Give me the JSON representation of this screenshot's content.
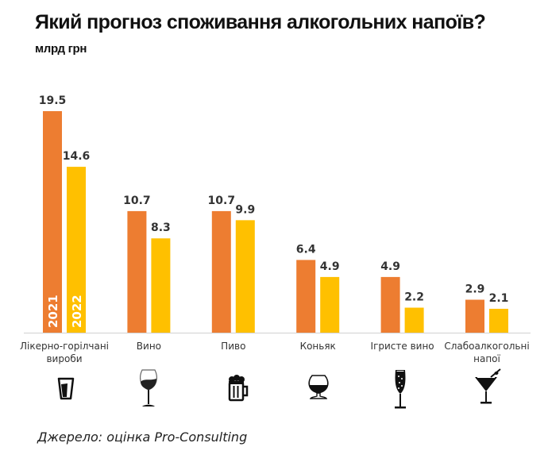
{
  "header": {
    "title": "Який прогноз споживання алкогольних напоїв?",
    "subtitle": "млрд грн"
  },
  "source": "Джерело: оцінка Pro-Consulting",
  "colors": {
    "series_2021": "#ED7D31",
    "series_2022": "#FFC000",
    "axis": "#d0d0d0"
  },
  "chart_data": {
    "type": "bar",
    "title": "Який прогноз споживання алкогольних напоїв?",
    "subtitle": "млрд грн",
    "xlabel": "",
    "ylabel": "млрд грн",
    "ylim": [
      0,
      19.5
    ],
    "grid": false,
    "legend": "inside-first-bars",
    "categories": [
      [
        "Лікерно-горілчані",
        "вироби"
      ],
      [
        "Вино"
      ],
      [
        "Пиво"
      ],
      [
        "Коньяк"
      ],
      [
        "Ігристе вино"
      ],
      [
        "Слабоалкогольні",
        "напої"
      ]
    ],
    "category_icons": [
      "shot-glass-icon",
      "wine-glass-icon",
      "beer-mug-icon",
      "brandy-snifter-icon",
      "champagne-flute-icon",
      "cocktail-glass-icon"
    ],
    "series": [
      {
        "name": "2021",
        "color": "#ED7D31",
        "values": [
          19.5,
          10.7,
          10.7,
          6.4,
          4.9,
          2.9
        ],
        "labels": [
          "19.5",
          "10.7",
          "10.7",
          "6.4",
          "4.9",
          "2.9"
        ]
      },
      {
        "name": "2022",
        "color": "#FFC000",
        "values": [
          14.6,
          8.3,
          9.9,
          4.9,
          2.2,
          2.1
        ],
        "labels": [
          "14.6",
          "8.3",
          "9.9",
          "4.9",
          "2.2",
          "2.1"
        ]
      }
    ]
  }
}
